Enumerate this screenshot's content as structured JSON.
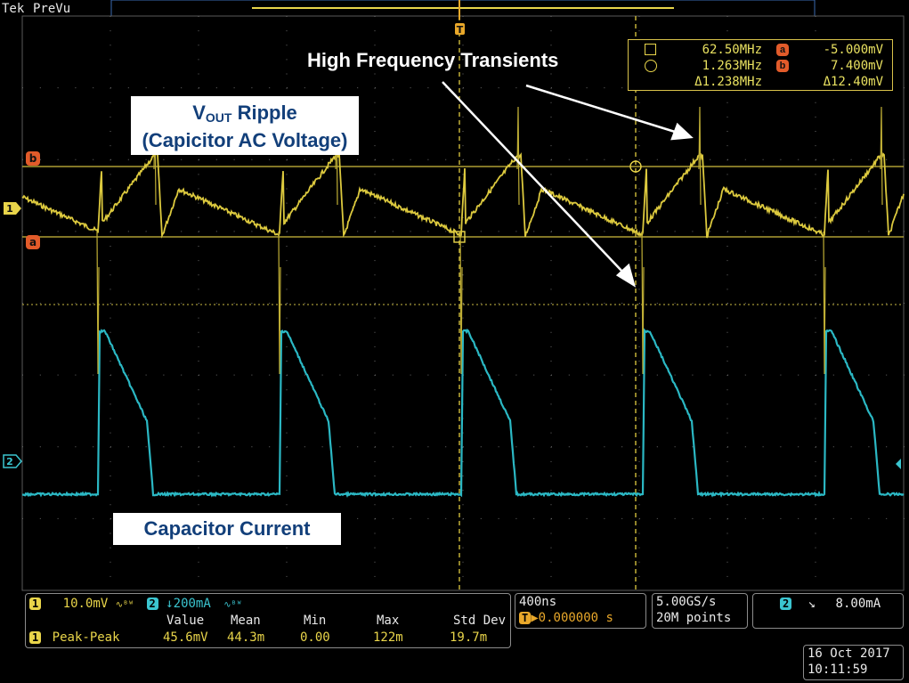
{
  "header": {
    "brand": "Tek",
    "run_state": "PreVu"
  },
  "annotations": {
    "high_frequency": "High Frequency Transients",
    "vout_main": "V",
    "vout_sub": "OUT",
    "vout_rest": " Ripple",
    "vout_line2": "(Capicitor AC Voltage)",
    "cap_current": "Capacitor Current"
  },
  "cursor_readout": {
    "row1_freq": "62.50MHz",
    "row1_marker": "a",
    "row1_value": "-5.000mV",
    "row2_freq": "1.263MHz",
    "row2_marker": "b",
    "row2_value": "7.400mV",
    "row3_freq": "Δ1.238MHz",
    "row3_value": "Δ12.40mV"
  },
  "markers": {
    "cursor_b": "b",
    "cursor_a": "a",
    "ch1": "1",
    "ch2": "2",
    "trigger": "T"
  },
  "channels": {
    "ch1_label": "1",
    "ch1_scale": "10.0mV",
    "ch2_label": "2",
    "ch2_scale": "↓200mA"
  },
  "measurements": {
    "headers": [
      "Value",
      "Mean",
      "Min",
      "Max",
      "Std Dev"
    ],
    "row_badge": "1",
    "row_name": "Peak-Peak",
    "values": [
      "45.6mV",
      "44.3m",
      "0.00",
      "122m",
      "19.7m"
    ]
  },
  "timebase": {
    "scale": "400ns",
    "trigger_pos": "▶0.000000 s"
  },
  "acquisition": {
    "rate": "5.00GS/s",
    "record": "20M points"
  },
  "trigger": {
    "source_badge": "2",
    "slope": "↘",
    "level": "8.00mA"
  },
  "datetime": {
    "date": "16 Oct  2017",
    "time": "10:11:59"
  },
  "colors": {
    "ch1": "#e9d54a",
    "ch2": "#3bc5d0",
    "cursor": "#d9c24a",
    "marker": "#e25b2a",
    "annotation_text": "#123f7a"
  }
}
